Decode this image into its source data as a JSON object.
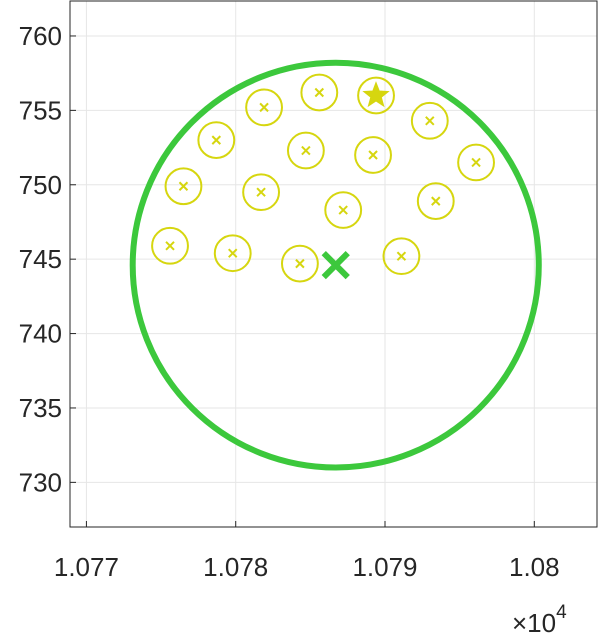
{
  "chart_data": {
    "type": "scatter",
    "xlim": [
      10768.9,
      10804.2
    ],
    "ylim": [
      727.0,
      762.35
    ],
    "xticks": [
      {
        "value": 10770,
        "label": "1.077"
      },
      {
        "value": 10780,
        "label": "1.078"
      },
      {
        "value": 10790,
        "label": "1.079"
      },
      {
        "value": 10800,
        "label": "1.08"
      }
    ],
    "yticks": [
      730,
      735,
      740,
      745,
      750,
      755,
      760
    ],
    "x_multiplier": {
      "base": "×10",
      "exponent": "4"
    },
    "grid": true,
    "series": [
      {
        "marker": "x-circle",
        "color": "#d6d60f",
        "circle_radius": 1.2,
        "x": [
          10775.6,
          10776.5,
          10778.7,
          10779.8,
          10781.7,
          10781.9,
          10784.3,
          10784.7,
          10785.6,
          10787.2,
          10789.2,
          10791.1,
          10793.4,
          10793.0,
          10796.1
        ],
        "y": [
          745.9,
          749.9,
          753.0,
          745.4,
          749.5,
          755.2,
          744.7,
          752.3,
          756.2,
          748.3,
          752.0,
          745.2,
          748.9,
          754.3,
          751.5
        ]
      },
      {
        "marker": "star-circle",
        "color": "#d6d60f",
        "circle_radius": 1.2,
        "x": [
          10789.4
        ],
        "y": [
          756.0
        ]
      },
      {
        "marker": "big-x",
        "color": "#3cc83c",
        "x": [
          10786.7
        ],
        "y": [
          744.6
        ]
      }
    ],
    "circles": [
      {
        "cx": 10786.7,
        "cy": 744.6,
        "r": 13.6,
        "color": "#3cc83c"
      }
    ]
  }
}
